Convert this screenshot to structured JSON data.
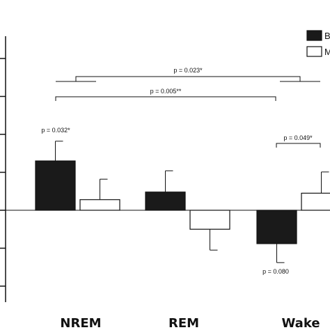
{
  "chart_data": {
    "type": "bar",
    "categories": [
      "NREM",
      "REM",
      "Wake"
    ],
    "series": [
      {
        "legend_label": "B",
        "color": "#1a1a1a",
        "values": [
          1.3,
          0.48,
          -0.88
        ],
        "errors": [
          0.52,
          0.56,
          0.5
        ]
      },
      {
        "legend_label": "M",
        "color": "#ffffff",
        "values": [
          0.28,
          -0.5,
          0.45
        ],
        "errors": [
          0.54,
          0.55,
          0.56
        ]
      }
    ],
    "ylim": [
      -2.3,
      4.4
    ],
    "yticks": [
      -2,
      -1,
      0,
      1,
      2,
      3,
      4
    ],
    "legend_position": "top-right",
    "annotations": [
      {
        "text": "p = 0.032*",
        "category": "NREM",
        "series": 0
      },
      {
        "text": "p = 0.080",
        "category": "Wake",
        "series": 0
      },
      {
        "text": "p = 0.023*",
        "from": "NREM",
        "to": "Wake"
      },
      {
        "text": "p = 0.005**",
        "from": "NREM",
        "to": "Wake"
      },
      {
        "text": "p = 0.049*",
        "from": "Wake",
        "to": "Wake"
      }
    ]
  }
}
